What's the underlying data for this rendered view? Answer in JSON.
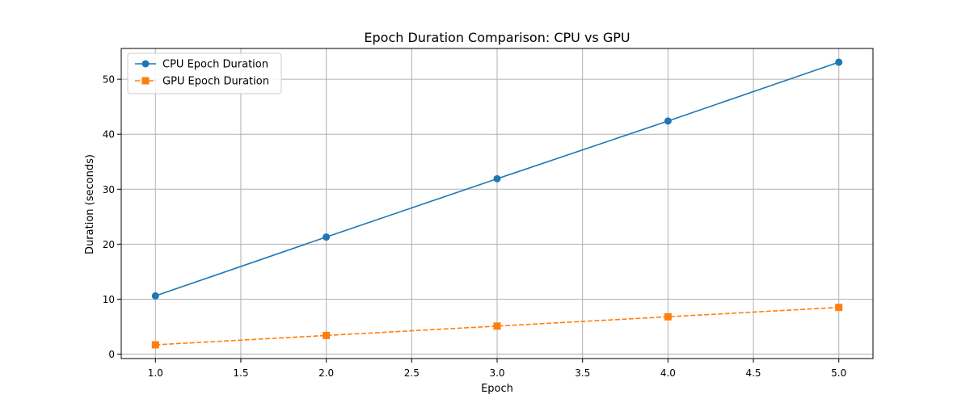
{
  "chart_data": {
    "type": "line",
    "title": "Epoch Duration Comparison: CPU vs GPU",
    "xlabel": "Epoch",
    "ylabel": "Duration (seconds)",
    "xlim": [
      0.8,
      5.2
    ],
    "ylim": [
      -0.8,
      55.6
    ],
    "x_ticks": [
      1.0,
      1.5,
      2.0,
      2.5,
      3.0,
      3.5,
      4.0,
      4.5,
      5.0
    ],
    "x_tick_labels": [
      "1.0",
      "1.5",
      "2.0",
      "2.5",
      "3.0",
      "3.5",
      "4.0",
      "4.5",
      "5.0"
    ],
    "y_ticks": [
      0,
      10,
      20,
      30,
      40,
      50
    ],
    "y_tick_labels": [
      "0",
      "10",
      "20",
      "30",
      "40",
      "50"
    ],
    "grid": true,
    "legend_position": "top-left",
    "x": [
      1,
      2,
      3,
      4,
      5
    ],
    "series": [
      {
        "name": "CPU Epoch Duration",
        "values": [
          10.6,
          21.3,
          31.9,
          42.4,
          53.1
        ],
        "color": "#1f77b4",
        "marker": "circle",
        "line_style": "solid"
      },
      {
        "name": "GPU Epoch Duration",
        "values": [
          1.7,
          3.4,
          5.1,
          6.8,
          8.5
        ],
        "color": "#ff7f0e",
        "marker": "square",
        "line_style": "dashed"
      }
    ]
  }
}
